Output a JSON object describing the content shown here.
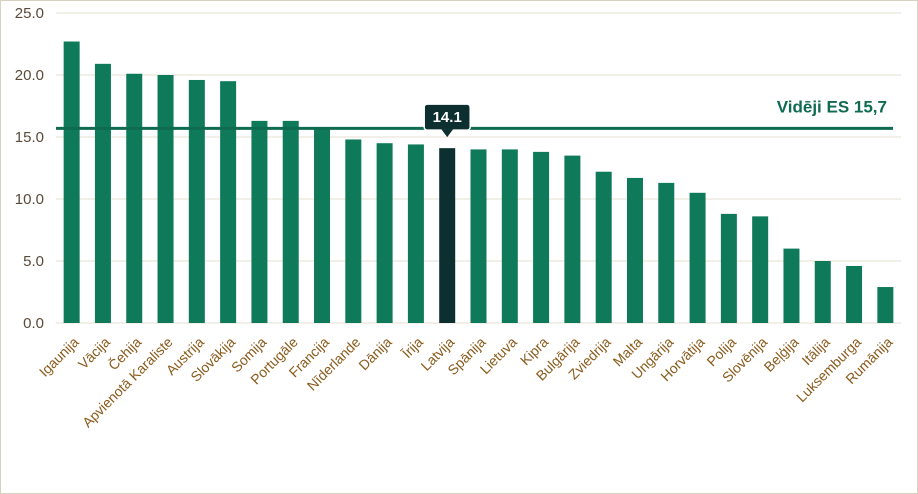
{
  "chart_data": {
    "type": "bar",
    "categories": [
      "Igaunija",
      "Vācija",
      "Čehija",
      "Apvienotā Karaliste",
      "Austrija",
      "Slovākija",
      "Somija",
      "Portugāle",
      "Francija",
      "Nīderlande",
      "Dānija",
      "Īrija",
      "Latvija",
      "Spānija",
      "Lietuva",
      "Kipra",
      "Bulgārija",
      "Zviedrija",
      "Malta",
      "Ungārija",
      "Horvātija",
      "Polija",
      "Slovēnija",
      "Beļģija",
      "Itālija",
      "Luksemburga",
      "Rumānija"
    ],
    "values": [
      22.7,
      20.9,
      20.1,
      20.0,
      19.6,
      19.5,
      16.3,
      16.3,
      15.8,
      14.8,
      14.5,
      14.4,
      14.1,
      14.0,
      14.0,
      13.8,
      13.5,
      12.2,
      11.7,
      11.3,
      10.5,
      8.8,
      8.6,
      6.0,
      5.0,
      4.6,
      2.9
    ],
    "highlight_index": 12,
    "highlight_label": "14.1",
    "ylim": [
      0,
      25
    ],
    "yticks": [
      "0.0",
      "5.0",
      "10.0",
      "15.0",
      "20.0",
      "25.0"
    ],
    "average_value": 15.7,
    "average_label": "Vidēji ES 15,7",
    "grid": "horizontal",
    "colors": {
      "bar": "#0f7a5a",
      "highlight": "#0d2f2f",
      "average_line": "#0f6b4f",
      "gridline": "#e4ddd0"
    }
  }
}
